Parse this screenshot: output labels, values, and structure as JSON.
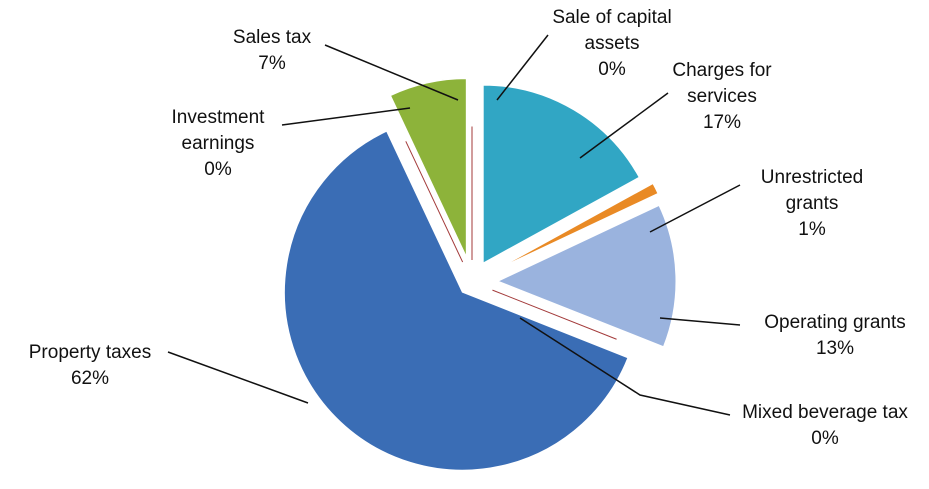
{
  "chart_data": {
    "type": "pie",
    "categories": [
      "Sale of capital assets",
      "Charges for services",
      "Unrestricted grants",
      "Operating grants",
      "Mixed beverage tax",
      "Property taxes",
      "Investment earnings",
      "Sales tax"
    ],
    "values": [
      0,
      17,
      1,
      13,
      0,
      62,
      0,
      7
    ],
    "value_labels": [
      "0%",
      "17%",
      "1%",
      "13%",
      "0%",
      "62%",
      "0%",
      "7%"
    ],
    "colors": [
      "#a33a3a",
      "#31a6c4",
      "#e98a25",
      "#9ab3de",
      "#a33a3a",
      "#3a6db5",
      "#a33a3a",
      "#8db33a"
    ]
  }
}
